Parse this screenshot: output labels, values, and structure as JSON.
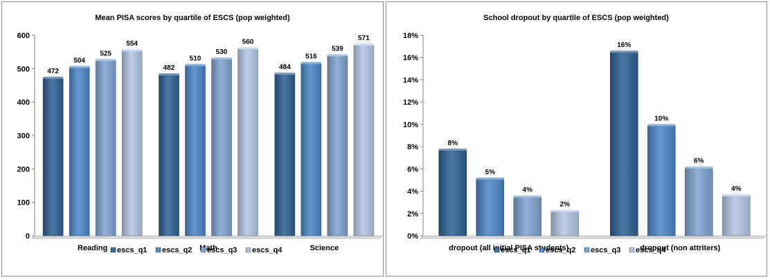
{
  "chart_data": [
    {
      "type": "bar",
      "title": "Mean PISA scores by quartile of ESCS (pop weighted)",
      "categories": [
        "Reading",
        "Math",
        "Science"
      ],
      "series": [
        {
          "name": "escs_q1",
          "values": [
            472,
            482,
            484
          ]
        },
        {
          "name": "escs_q2",
          "values": [
            504,
            510,
            516
          ]
        },
        {
          "name": "escs_q3",
          "values": [
            525,
            530,
            539
          ]
        },
        {
          "name": "escs_q4",
          "values": [
            554,
            560,
            571
          ]
        }
      ],
      "data_labels": [
        [
          "472",
          "482",
          "484"
        ],
        [
          "504",
          "510",
          "516"
        ],
        [
          "525",
          "530",
          "539"
        ],
        [
          "554",
          "560",
          "571"
        ]
      ],
      "ylim": [
        0,
        600
      ],
      "yticks": [
        "0",
        "100",
        "200",
        "300",
        "400",
        "500",
        "600"
      ],
      "xlabel": "",
      "ylabel": "",
      "grid": false,
      "legend": "bottom",
      "colors": [
        "#2e5f94",
        "#4a86c8",
        "#7fa3d0",
        "#b4c6e4"
      ]
    },
    {
      "type": "bar",
      "title": "School dropout by quartile of ESCS (pop weighted)",
      "categories": [
        "dropout (all initial PISA students)",
        "dropout (non attriters)"
      ],
      "series": [
        {
          "name": "escs_q1",
          "values": [
            7.7,
            16.5
          ]
        },
        {
          "name": "escs_q2",
          "values": [
            5.1,
            9.9
          ]
        },
        {
          "name": "escs_q3",
          "values": [
            3.5,
            6.1
          ]
        },
        {
          "name": "escs_q4",
          "values": [
            2.2,
            3.6
          ]
        }
      ],
      "data_labels": [
        [
          "8%",
          "16%"
        ],
        [
          "5%",
          "10%"
        ],
        [
          "4%",
          "6%"
        ],
        [
          "2%",
          "4%"
        ]
      ],
      "ylim": [
        0,
        18
      ],
      "yticks": [
        "0%",
        "2%",
        "4%",
        "6%",
        "8%",
        "10%",
        "12%",
        "14%",
        "16%",
        "18%"
      ],
      "xlabel": "",
      "ylabel": "",
      "grid": false,
      "legend": "bottom",
      "colors": [
        "#2e5f94",
        "#4a86c8",
        "#7fa3d0",
        "#b4c6e4"
      ]
    }
  ]
}
